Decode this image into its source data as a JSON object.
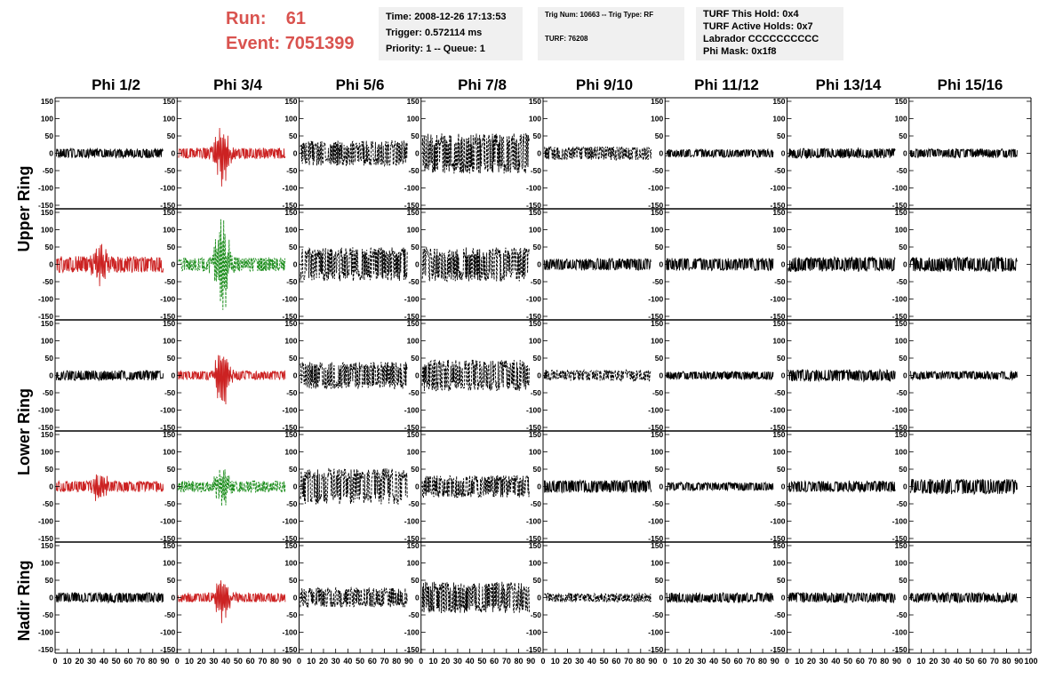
{
  "header": {
    "run_label": "Run:",
    "run_value": "61",
    "event_label": "Event:",
    "event_value": "7051399"
  },
  "info_boxes": {
    "time": {
      "line1": "Time: 2008-12-26 17:13:53",
      "line2": "Trigger: 0.572114 ms",
      "line3": "Priority: 1 -- Queue: 1"
    },
    "trig": {
      "line1": "Trig Num: 10663 -- Trig Type: RF",
      "line2": "TURF: 76208"
    },
    "turf": {
      "line1": "TURF This Hold: 0x4",
      "line2": "TURF Active Holds: 0x7",
      "line3": "Labrador CCCCCCCCCC",
      "line4": "Phi Mask: 0x1f8"
    }
  },
  "columns": [
    "Phi 1/2",
    "Phi 3/4",
    "Phi 5/6",
    "Phi 7/8",
    "Phi 9/10",
    "Phi 11/12",
    "Phi 13/14",
    "Phi 15/16"
  ],
  "rings": [
    "Upper Ring",
    "Lower Ring",
    "Nadir Ring"
  ],
  "chart_data": {
    "type": "line",
    "title": "",
    "xlim": [
      0,
      100
    ],
    "ylim": [
      -150,
      150
    ],
    "x_ticks": [
      0,
      10,
      20,
      30,
      40,
      50,
      60,
      70,
      80,
      90,
      100
    ],
    "x_tick_labels": [
      "0",
      "10",
      "20",
      "30",
      "40",
      "50",
      "60",
      "70",
      "80",
      "90",
      "100"
    ],
    "y_ticks": [
      -150,
      -100,
      -50,
      0,
      50,
      100,
      150
    ],
    "y_tick_labels": [
      "-150",
      "-100",
      "-50",
      "0",
      "50",
      "100",
      "150"
    ],
    "colors": {
      "black": "#000000",
      "red": "#cc2222",
      "green": "#1a8c1a"
    },
    "panels": [
      {
        "row": 0,
        "col": 0,
        "color": "black",
        "dashed": false,
        "amp": 10,
        "burst": 0,
        "seed": 1
      },
      {
        "row": 0,
        "col": 1,
        "color": "red",
        "dashed": false,
        "amp": 12,
        "burst": 80,
        "seed": 2
      },
      {
        "row": 0,
        "col": 2,
        "color": "black",
        "dashed": true,
        "amp": 28,
        "burst": 0,
        "seed": 3
      },
      {
        "row": 0,
        "col": 3,
        "color": "black",
        "dashed": true,
        "amp": 45,
        "burst": 0,
        "seed": 4
      },
      {
        "row": 0,
        "col": 4,
        "color": "black",
        "dashed": true,
        "amp": 15,
        "burst": 0,
        "seed": 5
      },
      {
        "row": 0,
        "col": 5,
        "color": "black",
        "dashed": false,
        "amp": 9,
        "burst": 0,
        "seed": 6
      },
      {
        "row": 0,
        "col": 6,
        "color": "black",
        "dashed": false,
        "amp": 11,
        "burst": 0,
        "seed": 7
      },
      {
        "row": 0,
        "col": 7,
        "color": "black",
        "dashed": false,
        "amp": 10,
        "burst": 0,
        "seed": 8
      },
      {
        "row": 1,
        "col": 0,
        "color": "red",
        "dashed": false,
        "amp": 18,
        "burst": 50,
        "seed": 9
      },
      {
        "row": 1,
        "col": 1,
        "color": "green",
        "dashed": true,
        "amp": 15,
        "burst": 140,
        "seed": 10
      },
      {
        "row": 1,
        "col": 2,
        "color": "black",
        "dashed": true,
        "amp": 38,
        "burst": 0,
        "seed": 11
      },
      {
        "row": 1,
        "col": 3,
        "color": "black",
        "dashed": true,
        "amp": 38,
        "burst": 0,
        "seed": 12
      },
      {
        "row": 1,
        "col": 4,
        "color": "black",
        "dashed": false,
        "amp": 13,
        "burst": 0,
        "seed": 13
      },
      {
        "row": 1,
        "col": 5,
        "color": "black",
        "dashed": false,
        "amp": 14,
        "burst": 0,
        "seed": 14
      },
      {
        "row": 1,
        "col": 6,
        "color": "black",
        "dashed": false,
        "amp": 16,
        "burst": 0,
        "seed": 15
      },
      {
        "row": 1,
        "col": 7,
        "color": "black",
        "dashed": false,
        "amp": 16,
        "burst": 0,
        "seed": 16
      },
      {
        "row": 2,
        "col": 0,
        "color": "black",
        "dashed": false,
        "amp": 11,
        "burst": 0,
        "seed": 17
      },
      {
        "row": 2,
        "col": 1,
        "color": "red",
        "dashed": false,
        "amp": 10,
        "burst": 90,
        "seed": 18
      },
      {
        "row": 2,
        "col": 2,
        "color": "black",
        "dashed": true,
        "amp": 30,
        "burst": 0,
        "seed": 19
      },
      {
        "row": 2,
        "col": 3,
        "color": "black",
        "dashed": true,
        "amp": 35,
        "burst": 0,
        "seed": 20
      },
      {
        "row": 2,
        "col": 4,
        "color": "black",
        "dashed": true,
        "amp": 12,
        "burst": 0,
        "seed": 21
      },
      {
        "row": 2,
        "col": 5,
        "color": "black",
        "dashed": false,
        "amp": 9,
        "burst": 0,
        "seed": 22
      },
      {
        "row": 2,
        "col": 6,
        "color": "black",
        "dashed": false,
        "amp": 13,
        "burst": 0,
        "seed": 23
      },
      {
        "row": 2,
        "col": 7,
        "color": "black",
        "dashed": false,
        "amp": 9,
        "burst": 0,
        "seed": 24
      },
      {
        "row": 3,
        "col": 0,
        "color": "red",
        "dashed": false,
        "amp": 12,
        "burst": 40,
        "seed": 25
      },
      {
        "row": 3,
        "col": 1,
        "color": "green",
        "dashed": true,
        "amp": 13,
        "burst": 55,
        "seed": 26
      },
      {
        "row": 3,
        "col": 2,
        "color": "black",
        "dashed": true,
        "amp": 40,
        "burst": 0,
        "seed": 27
      },
      {
        "row": 3,
        "col": 3,
        "color": "black",
        "dashed": true,
        "amp": 25,
        "burst": 0,
        "seed": 28
      },
      {
        "row": 3,
        "col": 4,
        "color": "black",
        "dashed": false,
        "amp": 14,
        "burst": 0,
        "seed": 29
      },
      {
        "row": 3,
        "col": 5,
        "color": "black",
        "dashed": false,
        "amp": 9,
        "burst": 0,
        "seed": 30
      },
      {
        "row": 3,
        "col": 6,
        "color": "black",
        "dashed": false,
        "amp": 12,
        "burst": 0,
        "seed": 31
      },
      {
        "row": 3,
        "col": 7,
        "color": "black",
        "dashed": false,
        "amp": 17,
        "burst": 0,
        "seed": 32
      },
      {
        "row": 4,
        "col": 0,
        "color": "black",
        "dashed": false,
        "amp": 11,
        "burst": 0,
        "seed": 33
      },
      {
        "row": 4,
        "col": 1,
        "color": "red",
        "dashed": false,
        "amp": 10,
        "burst": 70,
        "seed": 34
      },
      {
        "row": 4,
        "col": 2,
        "color": "black",
        "dashed": true,
        "amp": 22,
        "burst": 0,
        "seed": 35
      },
      {
        "row": 4,
        "col": 3,
        "color": "black",
        "dashed": true,
        "amp": 35,
        "burst": 0,
        "seed": 36
      },
      {
        "row": 4,
        "col": 4,
        "color": "black",
        "dashed": true,
        "amp": 10,
        "burst": 0,
        "seed": 37
      },
      {
        "row": 4,
        "col": 5,
        "color": "black",
        "dashed": false,
        "amp": 11,
        "burst": 0,
        "seed": 38
      },
      {
        "row": 4,
        "col": 6,
        "color": "black",
        "dashed": false,
        "amp": 11,
        "burst": 0,
        "seed": 39
      },
      {
        "row": 4,
        "col": 7,
        "color": "black",
        "dashed": false,
        "amp": 11,
        "burst": 0,
        "seed": 40
      }
    ]
  }
}
